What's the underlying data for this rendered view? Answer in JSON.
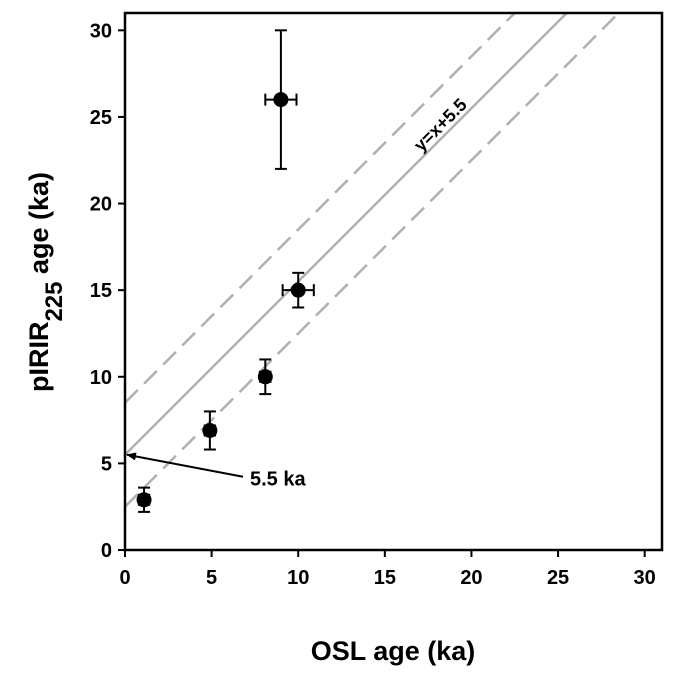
{
  "chart_data": {
    "type": "scatter",
    "xlabel": "OSL age (ka)",
    "ylabel": {
      "main": "pIRIR",
      "subscript": "225",
      "suffix": " age (ka)"
    },
    "xlim": [
      0,
      31
    ],
    "ylim": [
      0,
      31
    ],
    "xticks": [
      0,
      5,
      10,
      15,
      20,
      25,
      30
    ],
    "yticks": [
      0,
      5,
      10,
      15,
      20,
      25,
      30
    ],
    "grid": false,
    "points": [
      {
        "x": 1.1,
        "y": 2.9,
        "xerr": 0.3,
        "yerr": 0.7
      },
      {
        "x": 4.9,
        "y": 6.9,
        "xerr": 0.3,
        "yerr": 1.1
      },
      {
        "x": 8.1,
        "y": 10.0,
        "xerr": 0.3,
        "yerr": 1.0
      },
      {
        "x": 10.0,
        "y": 15.0,
        "xerr": 0.9,
        "yerr": 1.0
      },
      {
        "x": 9.0,
        "y": 26.0,
        "xerr": 0.9,
        "yerr": 4.0
      }
    ],
    "reference_lines": [
      {
        "name": "upper",
        "intercept": 8.5,
        "slope": 1,
        "style": "dashed",
        "color": "#b0b0b0"
      },
      {
        "name": "center",
        "intercept": 5.5,
        "slope": 1,
        "style": "solid",
        "color": "#b0b0b0",
        "label": "y=x+5.5"
      },
      {
        "name": "lower",
        "intercept": 2.5,
        "slope": 1,
        "style": "dashed",
        "color": "#b0b0b0"
      }
    ],
    "annotation": {
      "text": "5.5 ka",
      "target_x": 0,
      "target_y": 5.5
    }
  }
}
